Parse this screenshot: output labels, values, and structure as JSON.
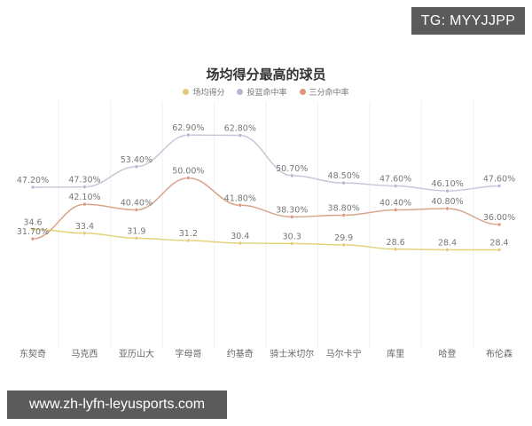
{
  "watermarks": {
    "top": "TG: MYYJJPP",
    "bottom": "www.zh-lyfn-leyusports.com"
  },
  "chart_data": {
    "type": "line",
    "title": "场均得分最高的球员",
    "xlabel": "",
    "ylabel": "",
    "categories": [
      "东契奇",
      "马克西",
      "亚历山大",
      "字母哥",
      "约基奇",
      "骑士米切尔",
      "马尔卡宁",
      "库里",
      "哈登",
      "布伦森"
    ],
    "series": [
      {
        "name": "场均得分",
        "color": "#e2d27a",
        "dot": "#e8c97a",
        "suffix": "",
        "decimals": 1,
        "values": [
          34.6,
          33.4,
          31.9,
          31.2,
          30.4,
          30.3,
          29.9,
          28.6,
          28.4,
          28.4
        ]
      },
      {
        "name": "投篮命中率",
        "color": "#c9c6d8",
        "dot": "#b7b3d4",
        "suffix": "%",
        "decimals": 2,
        "values": [
          47.2,
          47.3,
          53.4,
          62.9,
          62.8,
          50.7,
          48.5,
          47.6,
          46.1,
          47.6
        ]
      },
      {
        "name": "三分命中率",
        "color": "#d9a58a",
        "dot": "#e0967a",
        "suffix": "%",
        "decimals": 2,
        "values": [
          31.7,
          42.1,
          40.4,
          50.0,
          41.8,
          38.3,
          38.8,
          40.4,
          40.8,
          36.0
        ]
      }
    ],
    "ylim": [
      0,
      70
    ],
    "grid": {
      "vertical": true,
      "horizontal": false
    },
    "legend_position": "top",
    "smooth": true
  }
}
